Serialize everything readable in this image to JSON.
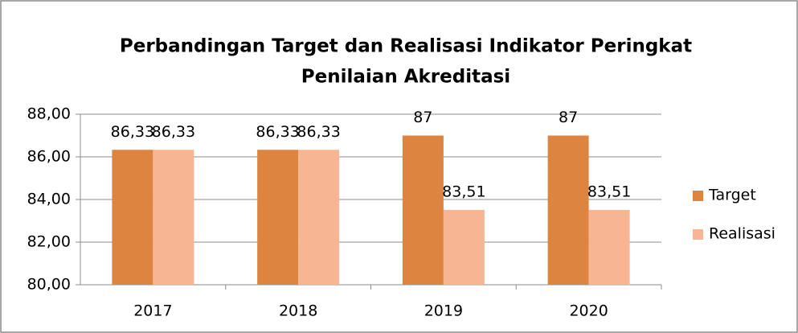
{
  "chart_data": {
    "type": "bar",
    "title": [
      "Perbandingan Target dan Realisasi Indikator Peringkat",
      "Penilaian Akreditasi"
    ],
    "categories": [
      "2017",
      "2018",
      "2019",
      "2020"
    ],
    "series": [
      {
        "name": "Target",
        "color": "#dd8540",
        "values": [
          86.33,
          86.33,
          87,
          87
        ],
        "value_labels": [
          "86,33",
          "86,33",
          "87",
          "87"
        ]
      },
      {
        "name": "Realisasi",
        "color": "#f8b594",
        "values": [
          86.33,
          86.33,
          83.51,
          83.51
        ],
        "value_labels": [
          "86,33",
          "86,33",
          "83,51",
          "83,51"
        ]
      }
    ],
    "ylim": [
      80,
      88
    ],
    "yticks": [
      {
        "value": 80,
        "label": "80,00"
      },
      {
        "value": 82,
        "label": "82,00"
      },
      {
        "value": 84,
        "label": "84,00"
      },
      {
        "value": 86,
        "label": "86,00"
      },
      {
        "value": 88,
        "label": "88,00"
      }
    ],
    "grid": true,
    "legend": "right"
  }
}
